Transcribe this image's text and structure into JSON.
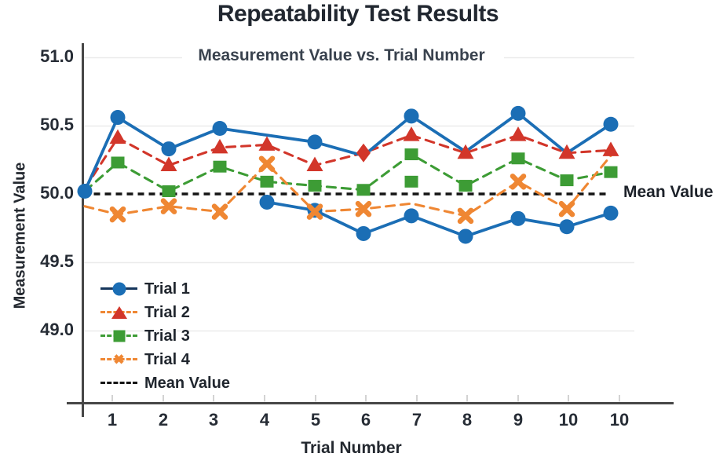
{
  "chart_data": {
    "type": "line",
    "title": "Repeatability Test Results",
    "subtitle": "Measurement Value vs. Trial Number",
    "xlabel": "Trial Number",
    "ylabel": "Measurement Value",
    "x_tick_labels": [
      "1",
      "2",
      "3",
      "4",
      "5",
      "6",
      "7",
      "8",
      "9",
      "10",
      "10"
    ],
    "y_tick_labels": [
      "51.0",
      "50.5",
      "50.0",
      "49.5",
      "49.0"
    ],
    "y_tick_values": [
      51.0,
      50.5,
      50.0,
      49.5,
      49.0
    ],
    "ylim": [
      48.5,
      51.1
    ],
    "grid": "horizontal-light",
    "legend_position": "lower-left-inside",
    "mean_value": 50.0,
    "mean_label": "Mean Value",
    "colors": {
      "trial1": "#1b6eb5",
      "trial2": "#d2362a",
      "trial3": "#3d9c35",
      "trial4": "#ef8733",
      "mean": "#141414",
      "axis": "#474747",
      "gridline": "#ebebeb"
    },
    "series": [
      {
        "name": "Trial 2",
        "color": "#d2362a",
        "line": "dashed",
        "marker": "triangle",
        "points": [
          {
            "slot": 0,
            "v": 50.04,
            "m": false
          },
          {
            "slot": 1,
            "v": 50.41,
            "m": true
          },
          {
            "slot": 2,
            "v": 50.21,
            "m": true
          },
          {
            "slot": 3,
            "v": 50.34,
            "m": true
          },
          {
            "slot": 4,
            "v": 50.36,
            "m": true
          },
          {
            "slot": 5,
            "v": 50.21,
            "m": true
          },
          {
            "slot": 6,
            "v": 50.3,
            "m": true,
            "shape": "diamond"
          },
          {
            "slot": 7,
            "v": 50.43,
            "m": true
          },
          {
            "slot": 8,
            "v": 50.3,
            "m": true
          },
          {
            "slot": 9,
            "v": 50.43,
            "m": true
          },
          {
            "slot": 10,
            "v": 50.3,
            "m": true
          },
          {
            "slot": 11,
            "v": 50.32,
            "m": true
          }
        ]
      },
      {
        "name": "Trial 3",
        "color": "#3d9c35",
        "line": "dashed",
        "marker": "square",
        "points": [
          {
            "slot": 0,
            "v": 50.02,
            "m": false
          },
          {
            "slot": 1,
            "v": 50.23,
            "m": true
          },
          {
            "slot": 2,
            "v": 50.02,
            "m": true
          },
          {
            "slot": 3,
            "v": 50.2,
            "m": true
          },
          {
            "slot": 4,
            "v": 50.09,
            "m": true
          },
          {
            "slot": 5,
            "v": 50.06,
            "m": true
          },
          {
            "slot": 6,
            "v": 50.03,
            "m": true
          },
          {
            "slot": 7,
            "v": 50.29,
            "m": true
          },
          {
            "slot": 8,
            "v": 50.06,
            "m": true
          },
          {
            "slot": 9,
            "v": 50.26,
            "m": true
          },
          {
            "slot": 10,
            "v": 50.1,
            "m": true
          },
          {
            "slot": 11,
            "v": 50.16,
            "m": true
          }
        ],
        "extra_markers": [
          {
            "slot": 7,
            "v": 50.09
          }
        ]
      },
      {
        "name": "Trial 1",
        "branch": "upper",
        "color": "#1b6eb5",
        "line": "solid",
        "marker": "circle",
        "points": [
          {
            "slot": 0,
            "v": 50.02,
            "m": true
          },
          {
            "slot": 1,
            "v": 50.56,
            "m": true
          },
          {
            "slot": 2,
            "v": 50.33,
            "m": true
          },
          {
            "slot": 3,
            "v": 50.48,
            "m": true
          },
          {
            "slot": 5,
            "v": 50.38,
            "m": true
          },
          {
            "slot": 6,
            "v": 50.28,
            "m": false
          },
          {
            "slot": 7,
            "v": 50.57,
            "m": true
          },
          {
            "slot": 8,
            "v": 50.31,
            "m": false
          },
          {
            "slot": 9,
            "v": 50.59,
            "m": true
          },
          {
            "slot": 10,
            "v": 50.3,
            "m": false
          },
          {
            "slot": 11,
            "v": 50.51,
            "m": true
          }
        ]
      },
      {
        "name": "Trial 1",
        "branch": "lower",
        "color": "#1b6eb5",
        "line": "solid",
        "marker": "circle",
        "points": [
          {
            "slot": 4,
            "v": 49.94,
            "m": true
          },
          {
            "slot": 5,
            "v": 49.88,
            "m": true
          },
          {
            "slot": 6,
            "v": 49.71,
            "m": true
          },
          {
            "slot": 7,
            "v": 49.84,
            "m": true
          },
          {
            "slot": 8,
            "v": 49.69,
            "m": true
          },
          {
            "slot": 9,
            "v": 49.82,
            "m": true
          },
          {
            "slot": 10,
            "v": 49.76,
            "m": true
          },
          {
            "slot": 11,
            "v": 49.86,
            "m": true
          }
        ]
      },
      {
        "name": "Trial 4",
        "color": "#ef8733",
        "line": "dashed",
        "marker": "x",
        "points": [
          {
            "slot": 0,
            "v": 49.91,
            "m": false
          },
          {
            "slot": 1,
            "v": 49.85,
            "m": true
          },
          {
            "slot": 2,
            "v": 49.91,
            "m": true
          },
          {
            "slot": 3,
            "v": 49.87,
            "m": true
          },
          {
            "slot": 4,
            "v": 50.22,
            "m": true
          },
          {
            "slot": 5,
            "v": 49.87,
            "m": true
          },
          {
            "slot": 6,
            "v": 49.89,
            "m": true
          },
          {
            "slot": 7,
            "v": 49.93,
            "m": false
          },
          {
            "slot": 8,
            "v": 49.84,
            "m": true
          },
          {
            "slot": 9,
            "v": 50.09,
            "m": true
          },
          {
            "slot": 10,
            "v": 49.89,
            "m": true
          },
          {
            "slot": 11,
            "v": 50.28,
            "m": false
          }
        ]
      }
    ],
    "legend": [
      {
        "label": "Trial 1",
        "marker": "circle",
        "marker_color": "#1b6eb5",
        "line": "solid",
        "line_color": "#16365c"
      },
      {
        "label": "Trial 2",
        "marker": "triangle",
        "marker_color": "#d2362a",
        "line": "dashed",
        "line_color": "#ef8733"
      },
      {
        "label": "Trial 3",
        "marker": "square",
        "marker_color": "#3d9c35",
        "line": "dashed",
        "line_color": "#3d9c35"
      },
      {
        "label": "Trial 4",
        "marker": "x",
        "marker_color": "#ef8733",
        "line": "dashed",
        "line_color": "#ef8733"
      },
      {
        "label": "Mean Value",
        "marker": "none",
        "marker_color": "",
        "line": "dashed",
        "line_color": "#141414"
      }
    ]
  }
}
